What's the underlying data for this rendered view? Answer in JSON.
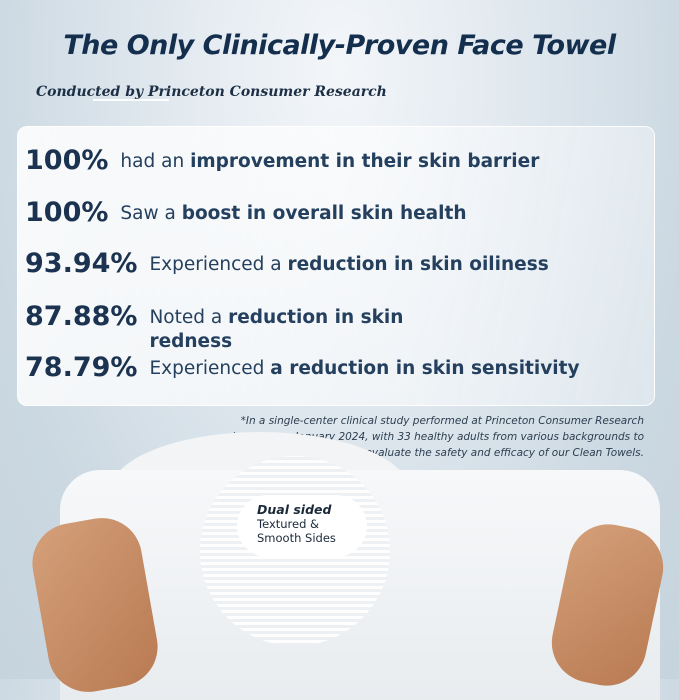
{
  "title": "The Only Clinically-Proven Face Towel",
  "subtitle": "Conducted by Princeton Consumer Research",
  "stats": [
    {
      "value": "100%",
      "pre": "had an ",
      "bold": "improvement in their skin barrier",
      "post": ""
    },
    {
      "value": "100%",
      "pre": "Saw a ",
      "bold": "boost in overall skin health",
      "post": ""
    },
    {
      "value": "93.94%",
      "pre": "Experienced a ",
      "bold": "reduction in skin oiliness",
      "post": ""
    },
    {
      "value": "87.88%",
      "pre": "Noted a ",
      "bold": "reduction in skin redness",
      "post": ""
    },
    {
      "value": "78.79%",
      "pre": "Experienced ",
      "bold": "a reduction in skin sensitivity",
      "post": ""
    }
  ],
  "footnote": "*In a single-center clinical study performed at Princeton Consumer Research institute on January 2024, with 33 healthy adults from various backgrounds to evaluate the safety and efficacy of our Clean Towels.",
  "callout": {
    "heading": "Dual sided",
    "line1": "Textured &",
    "line2": "Smooth Sides"
  },
  "colors": {
    "text": "#142f4d",
    "background": "#cbd8e1"
  }
}
